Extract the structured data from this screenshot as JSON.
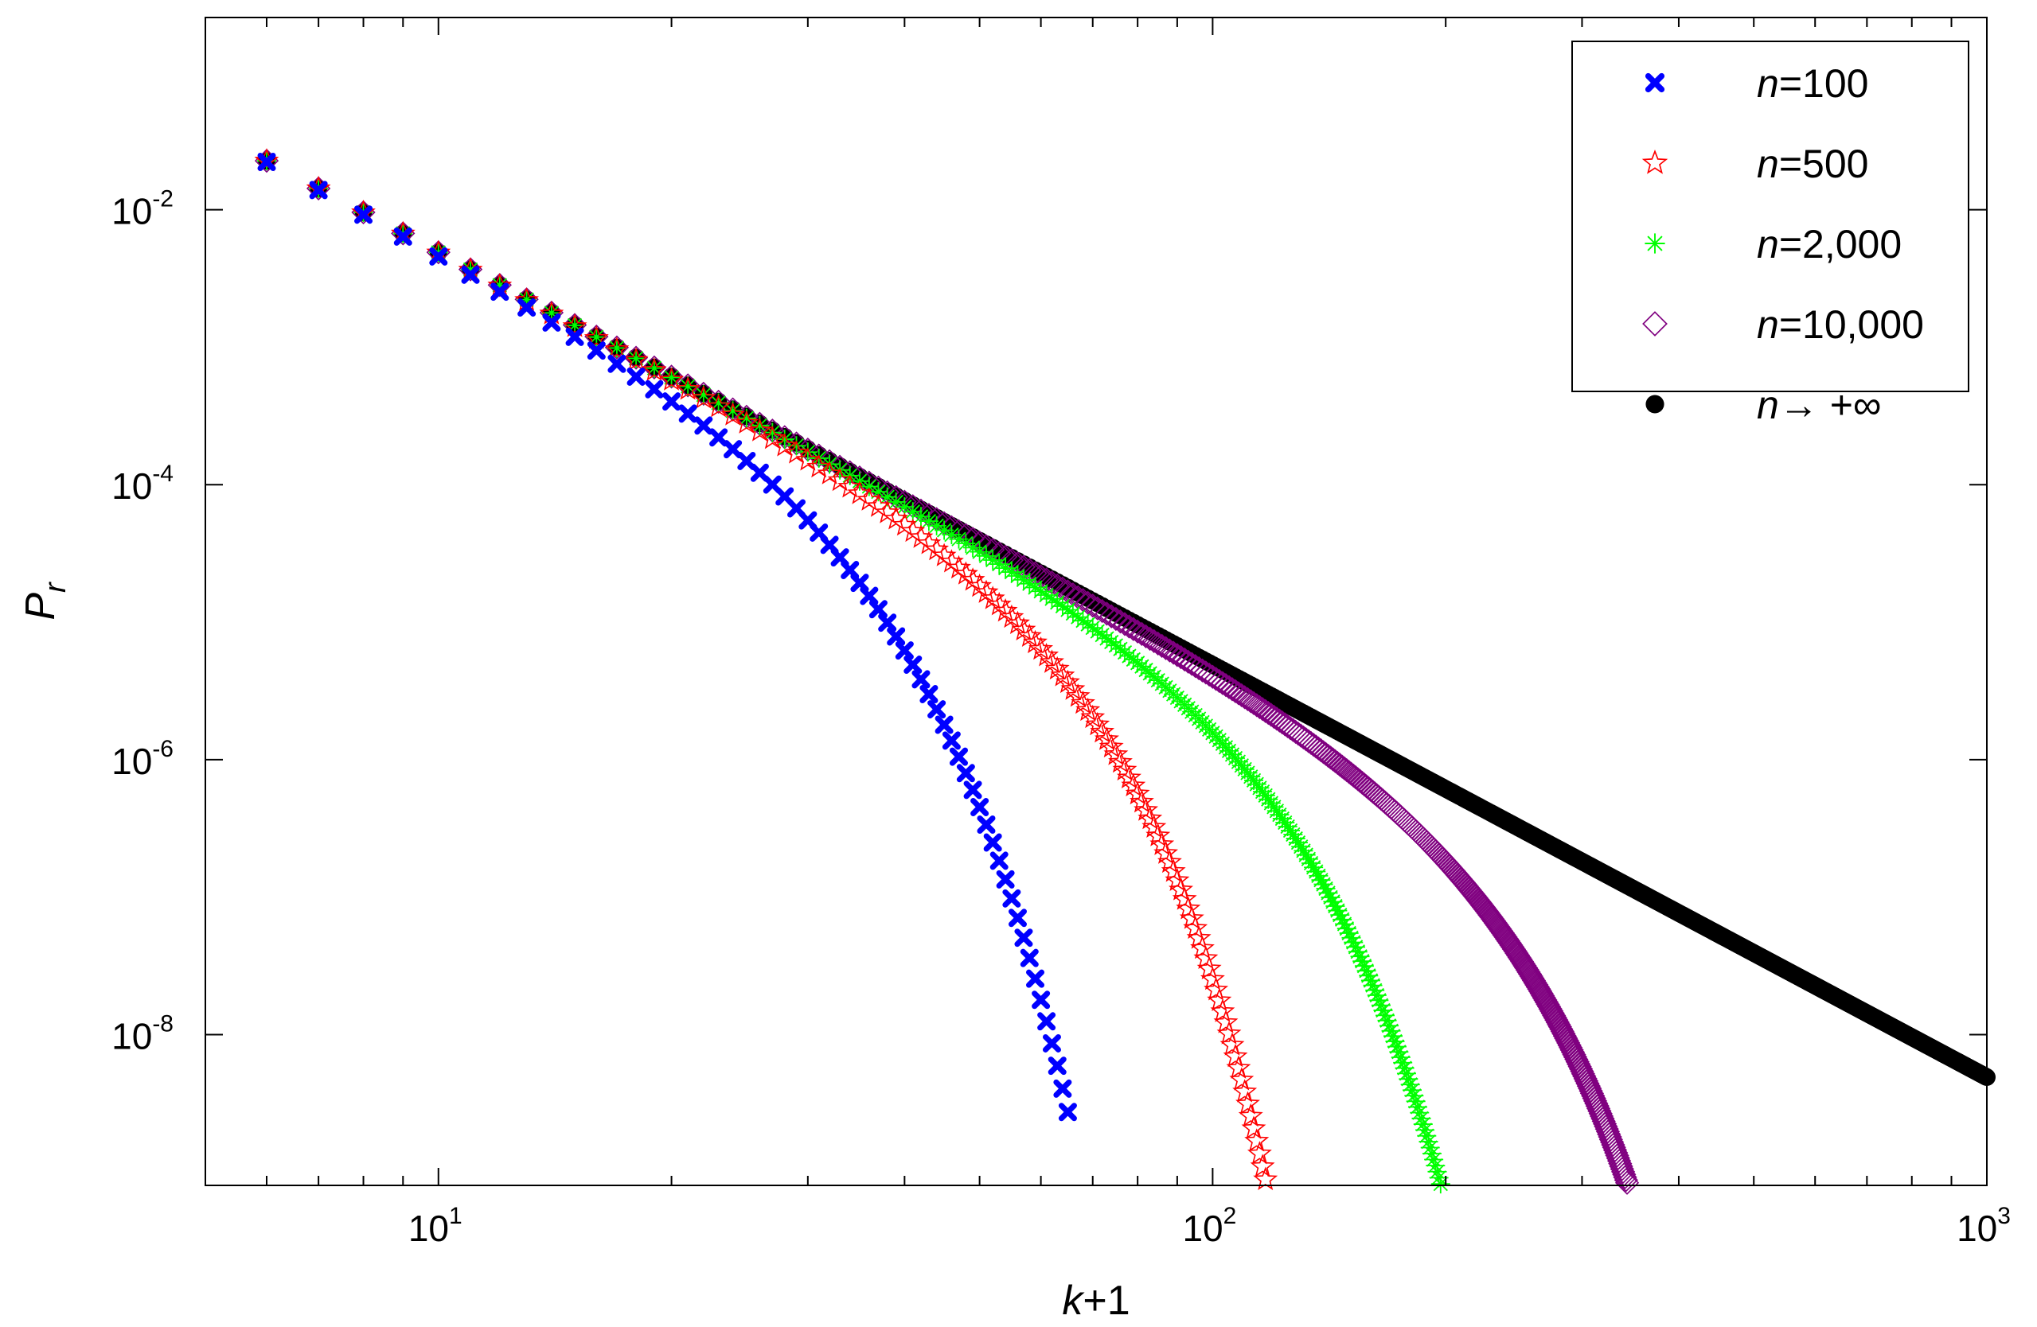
{
  "chart_data": {
    "type": "scatter",
    "xscale": "log",
    "yscale": "log",
    "xlim": [
      5,
      1000
    ],
    "ylim": [
      8e-10,
      0.25
    ],
    "grid": false,
    "legend_position": "top-right",
    "xlabel": {
      "var": "k",
      "rest": "+1"
    },
    "ylabel": {
      "var": "P",
      "sub": "r"
    },
    "xticks": [
      {
        "value": 10,
        "base": "10",
        "exp": "1"
      },
      {
        "value": 100,
        "base": "10",
        "exp": "2"
      },
      {
        "value": 1000,
        "base": "10",
        "exp": "3"
      }
    ],
    "yticks": [
      {
        "value": 0.01,
        "base": "10",
        "exp": "-2"
      },
      {
        "value": 0.0001,
        "base": "10",
        "exp": "-4"
      },
      {
        "value": 1e-06,
        "base": "10",
        "exp": "-6"
      },
      {
        "value": 1e-08,
        "base": "10",
        "exp": "-8"
      }
    ],
    "reference_law": {
      "c": 4.9,
      "exponent": -3
    },
    "series": [
      {
        "key": "n100",
        "name_var": "n",
        "name_rest": "=100",
        "marker": "x",
        "color": "#0000FF",
        "x_range": [
          6,
          65
        ],
        "cutoff": {
          "x0": 28,
          "beta": 2.58
        }
      },
      {
        "key": "n500",
        "name_var": "n",
        "name_rest": "=500",
        "marker": "star",
        "color": "#FF0000",
        "x_range": [
          6,
          145
        ],
        "cutoff": {
          "x0": 55,
          "beta": 2.78
        }
      },
      {
        "key": "n2000",
        "name_var": "n",
        "name_rest": "=2,000",
        "marker": "asterisk",
        "color": "#00FF00",
        "x_range": [
          6,
          225
        ],
        "cutoff": {
          "x0": 95,
          "beta": 2.6
        }
      },
      {
        "key": "n10000",
        "name_var": "n",
        "name_rest": "=10,000",
        "marker": "diamond",
        "color": "#800080",
        "x_range": [
          6,
          360
        ],
        "cutoff": {
          "x0": 185,
          "beta": 2.6
        }
      },
      {
        "key": "ninf",
        "name_var": "n",
        "name_rest": "→ +∞",
        "marker": "circle",
        "color": "#000000",
        "x_range": [
          6,
          1000
        ],
        "cutoff": null
      }
    ]
  }
}
